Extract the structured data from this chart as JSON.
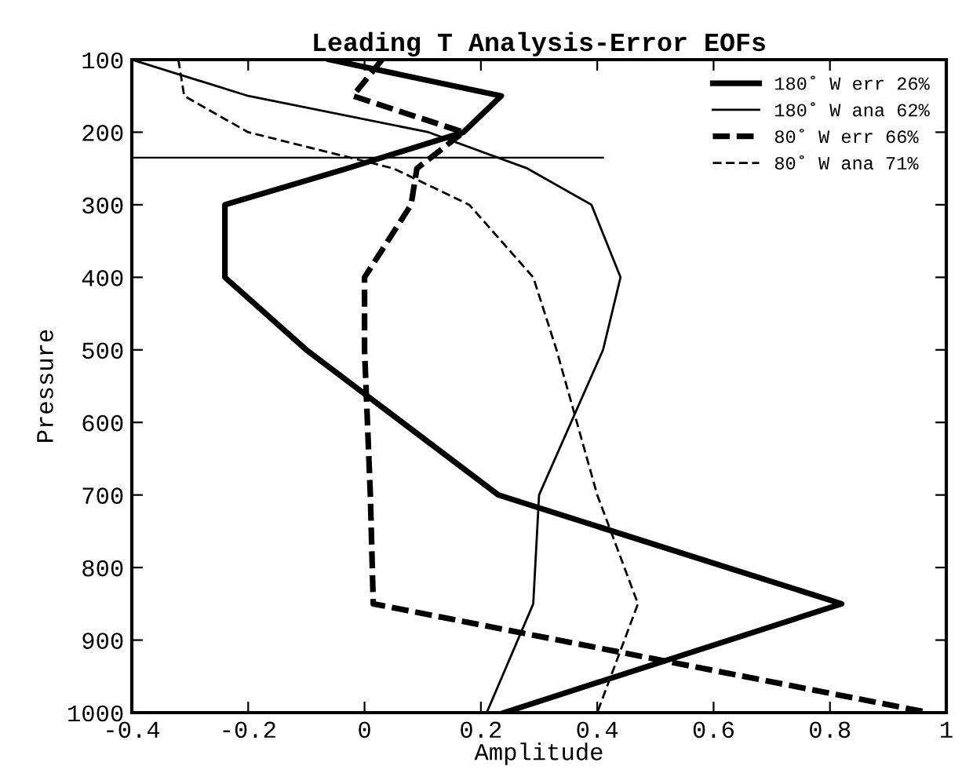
{
  "chart_data": {
    "type": "line",
    "title": "Leading T Analysis-Error EOFs",
    "xlabel": "Amplitude",
    "ylabel": "Pressure",
    "xlim": [
      -0.4,
      1
    ],
    "xticks": [
      -0.4,
      -0.2,
      0,
      0.2,
      0.4,
      0.6,
      0.8,
      1
    ],
    "ylim": [
      1000,
      100
    ],
    "yticks": [
      100,
      200,
      300,
      400,
      500,
      600,
      700,
      800,
      900,
      1000
    ],
    "grid": false,
    "legend": "top right",
    "marker": "none",
    "series": [
      {
        "name": "180˚ W err 26%",
        "color": "#000000",
        "line_style": "solid",
        "x": [
          -0.06,
          0.235,
          0.17,
          -0.03,
          -0.24,
          -0.24,
          -0.1,
          0.23,
          0.82,
          0.24
        ],
        "values": [
          100,
          150,
          200,
          250,
          300,
          400,
          500,
          700,
          850,
          1000
        ]
      },
      {
        "name": "180˚ W ana 62%",
        "color": "#000000",
        "line_style": "solid",
        "x": [
          -0.4,
          -0.2,
          0.11,
          0.28,
          0.39,
          0.44,
          0.41,
          0.3,
          0.29,
          0.21
        ],
        "values": [
          100,
          150,
          200,
          250,
          300,
          400,
          500,
          700,
          850,
          1000
        ]
      },
      {
        "name": "80˚ W err 66%",
        "color": "#000000",
        "line_style": "dashed",
        "x": [
          0.03,
          -0.02,
          0.17,
          0.09,
          0.08,
          0.0,
          0.0,
          0.01,
          0.015,
          0.97
        ],
        "values": [
          100,
          150,
          200,
          250,
          300,
          400,
          500,
          700,
          850,
          1000
        ]
      },
      {
        "name": "80˚ W ana 71%",
        "color": "#000000",
        "line_style": "dashed",
        "x": [
          -0.32,
          -0.31,
          -0.2,
          0.05,
          0.18,
          0.29,
          0.33,
          0.4,
          0.47,
          0.4
        ],
        "values": [
          100,
          150,
          200,
          250,
          300,
          400,
          500,
          700,
          850,
          1000
        ]
      },
      {
        "color": "#000000",
        "line_style": "solid",
        "x": [
          -0.4,
          0.41
        ],
        "values": [
          235,
          235
        ]
      }
    ]
  }
}
